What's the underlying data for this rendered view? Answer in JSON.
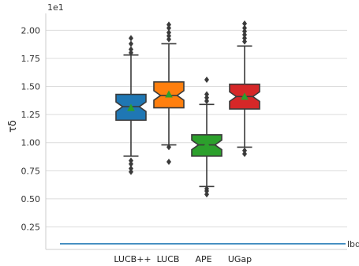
{
  "chart_data": {
    "type": "box",
    "scale_label": "1e1",
    "ylabel": "τδ",
    "ylim": [
      0.05,
      2.15
    ],
    "yticks": [
      "0.25",
      "0.50",
      "0.75",
      "1.00",
      "1.25",
      "1.50",
      "1.75",
      "2.00"
    ],
    "grid": true,
    "categories": [
      "LUCB++",
      "LUCB",
      "APE",
      "UGap"
    ],
    "boxes": [
      {
        "name": "LUCB++",
        "color": "#1f77b4",
        "q1": 1.2,
        "median": 1.32,
        "q3": 1.43,
        "whisker_low": 0.88,
        "whisker_high": 1.78,
        "mean": 1.31,
        "outliers": [
          0.74,
          0.77,
          0.81,
          0.84,
          1.8,
          1.83,
          1.88,
          1.93
        ]
      },
      {
        "name": "LUCB",
        "color": "#ff7f0e",
        "q1": 1.31,
        "median": 1.42,
        "q3": 1.54,
        "whisker_low": 0.98,
        "whisker_high": 1.88,
        "mean": 1.43,
        "outliers": [
          0.83,
          0.96,
          1.92,
          1.95,
          1.98,
          2.02,
          2.05
        ]
      },
      {
        "name": "APE",
        "color": "#2ca02c",
        "q1": 0.88,
        "median": 0.98,
        "q3": 1.07,
        "whisker_low": 0.61,
        "whisker_high": 1.34,
        "mean": 0.98,
        "outliers": [
          0.54,
          0.57,
          0.59,
          1.37,
          1.4,
          1.43,
          1.56
        ]
      },
      {
        "name": "UGap",
        "color": "#d62728",
        "q1": 1.3,
        "median": 1.41,
        "q3": 1.52,
        "whisker_low": 0.96,
        "whisker_high": 1.86,
        "mean": 1.41,
        "outliers": [
          0.9,
          0.93,
          1.9,
          1.93,
          1.96,
          1.99,
          2.02,
          2.06
        ]
      }
    ],
    "reference_line": {
      "label": "lbd",
      "value": 0.1,
      "color": "#1f77b4"
    }
  }
}
